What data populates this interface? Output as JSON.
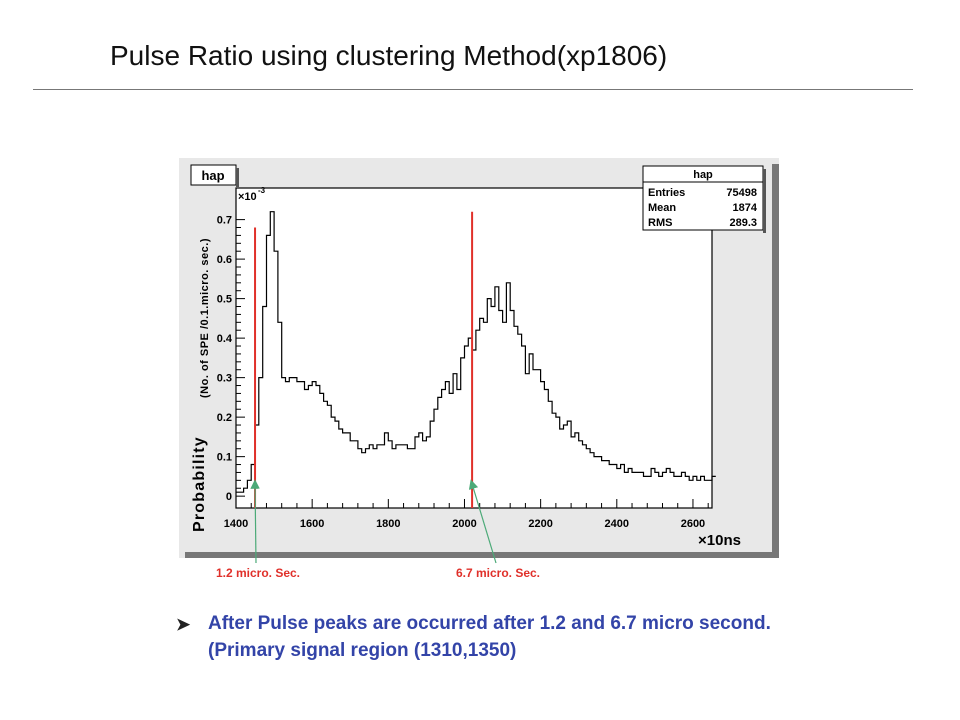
{
  "slide": {
    "title": "Pulse Ratio using clustering Method(xp1806)",
    "bullet_icon": "arrowhead-bullet-icon",
    "bullet_text": "After Pulse peaks are occurred after  1.2 and 6.7 micro second. (Primary signal region (1310,1350)"
  },
  "chart_data": {
    "type": "histogram",
    "title": "hap",
    "ylabel_main": "Probability",
    "ylabel_sub": "(No. of SPE /0.1.micro. sec.)",
    "xlabel": "×10ns",
    "y_exponent_label": "×10",
    "y_exponent": "-3",
    "xlim": [
      1400,
      2650
    ],
    "ylim": [
      -0.03,
      0.78
    ],
    "x_ticks": [
      "1400",
      "1600",
      "1800",
      "2000",
      "2200",
      "2400",
      "2600"
    ],
    "x_tick_values": [
      1400,
      1600,
      1800,
      2000,
      2200,
      2400,
      2600
    ],
    "y_ticks": [
      "0",
      "0.1",
      "0.2",
      "0.3",
      "0.4",
      "0.5",
      "0.6",
      "0.7"
    ],
    "y_tick_values": [
      0,
      0.1,
      0.2,
      0.3,
      0.4,
      0.5,
      0.6,
      0.7
    ],
    "stats": {
      "title": "hap",
      "rows": [
        {
          "label": "Entries",
          "value": "75498"
        },
        {
          "label": "Mean",
          "value": "1874"
        },
        {
          "label": "RMS",
          "value": "289.3"
        }
      ]
    },
    "bin_width": 10,
    "x_start": 1400,
    "values": [
      0.01,
      0.01,
      0.02,
      0.04,
      0.08,
      0.18,
      0.3,
      0.48,
      0.66,
      0.72,
      0.62,
      0.44,
      0.3,
      0.29,
      0.3,
      0.3,
      0.29,
      0.29,
      0.27,
      0.28,
      0.29,
      0.28,
      0.26,
      0.24,
      0.23,
      0.2,
      0.19,
      0.17,
      0.16,
      0.16,
      0.14,
      0.14,
      0.12,
      0.11,
      0.12,
      0.13,
      0.12,
      0.13,
      0.13,
      0.16,
      0.14,
      0.12,
      0.13,
      0.13,
      0.13,
      0.12,
      0.12,
      0.15,
      0.16,
      0.14,
      0.15,
      0.19,
      0.22,
      0.25,
      0.27,
      0.29,
      0.26,
      0.31,
      0.27,
      0.35,
      0.38,
      0.4,
      0.37,
      0.42,
      0.45,
      0.44,
      0.5,
      0.48,
      0.53,
      0.47,
      0.44,
      0.54,
      0.47,
      0.43,
      0.41,
      0.38,
      0.31,
      0.36,
      0.32,
      0.32,
      0.29,
      0.27,
      0.24,
      0.21,
      0.2,
      0.17,
      0.18,
      0.19,
      0.15,
      0.16,
      0.14,
      0.13,
      0.12,
      0.11,
      0.1,
      0.1,
      0.09,
      0.09,
      0.08,
      0.08,
      0.07,
      0.08,
      0.06,
      0.07,
      0.06,
      0.06,
      0.06,
      0.05,
      0.05,
      0.07,
      0.06,
      0.05,
      0.06,
      0.07,
      0.06,
      0.05,
      0.05,
      0.06,
      0.05,
      0.04,
      0.05,
      0.04,
      0.05,
      0.04,
      0.04,
      0.05
    ],
    "peak_markers": [
      {
        "x": 1450,
        "label": "1.2 micro. Sec.",
        "color": "#e0302a"
      },
      {
        "x": 2020,
        "label": "6.7 micro. Sec.",
        "color": "#e0302a"
      }
    ],
    "colors": {
      "frame_bg": "#e8e8e8",
      "plot_bg": "#ffffff",
      "histogram": "#000000",
      "arrow": "#4caa78",
      "annotation_text": "#e0302a"
    }
  }
}
